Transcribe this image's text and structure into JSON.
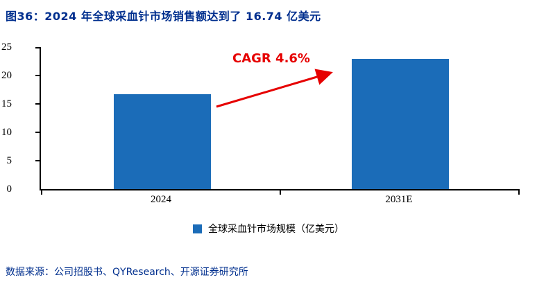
{
  "header": {
    "title": "图36：2024 年全球采血针市场销售额达到了 16.74 亿美元"
  },
  "chart_data": {
    "type": "bar",
    "categories": [
      "2024",
      "2031E"
    ],
    "values": [
      16.74,
      22.9
    ],
    "title": "2024 年全球采血针市场销售额达到了 16.74 亿美元",
    "xlabel": "",
    "ylabel": "",
    "ylim": [
      0,
      25
    ],
    "yticks": [
      0,
      5,
      10,
      15,
      20,
      25
    ],
    "grid": "off",
    "legend": [
      "全球采血针市场规模（亿美元）"
    ],
    "legend_position": "bottom",
    "annotation": "CAGR 4.6%"
  },
  "footer": {
    "source": "数据来源：公司招股书、QYResearch、开源证券研究所"
  },
  "colors": {
    "title": "#002F8E",
    "bar": "#1B6CB8",
    "annotation": "#E60000",
    "axis": "#000000"
  }
}
